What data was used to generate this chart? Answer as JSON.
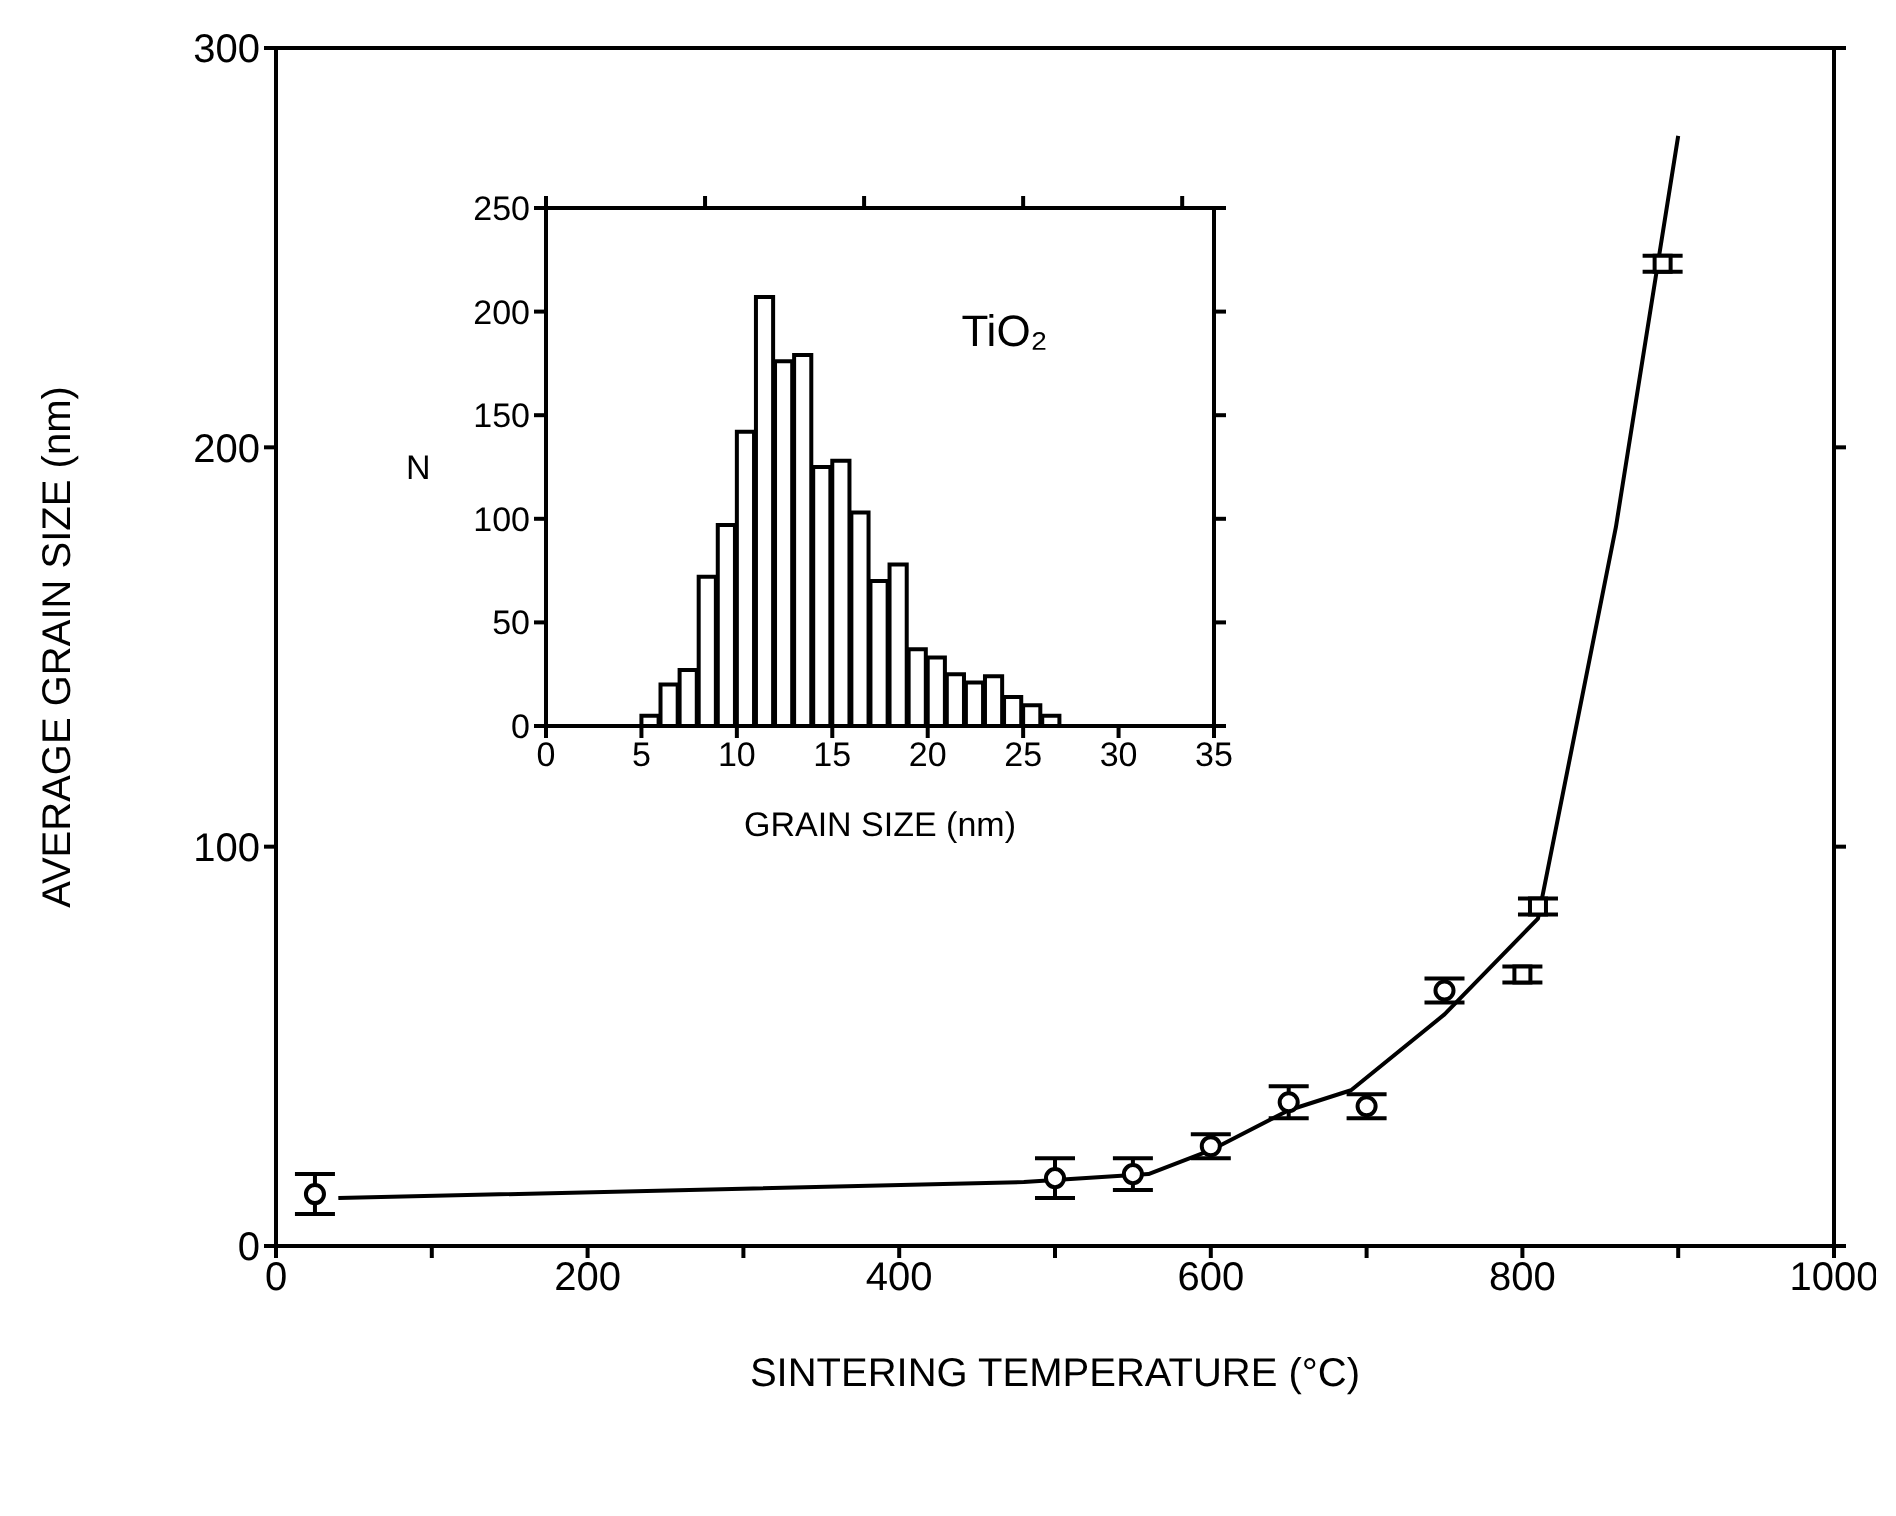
{
  "chart_data": [
    {
      "type": "scatter",
      "xlabel": "SINTERING TEMPERATURE (°C)",
      "ylabel": "AVERAGE GRAIN SIZE (nm)",
      "xlim": [
        0,
        1000
      ],
      "xticks": [
        0,
        {
          "value": 100,
          "label": null
        },
        200,
        {
          "value": 300,
          "label": null
        },
        400,
        {
          "value": 500,
          "label": null
        },
        600,
        {
          "value": 700,
          "label": null
        },
        800,
        {
          "value": 900,
          "label": null
        },
        1000
      ],
      "ylim": [
        0,
        300
      ],
      "yticks": [
        0,
        100,
        200,
        300
      ],
      "series": [
        {
          "marker": "circle",
          "color": "#000000",
          "x": [
            25,
            500,
            550,
            600,
            650,
            700,
            750
          ],
          "values": [
            13,
            17,
            18,
            25,
            36,
            35,
            64
          ],
          "errors": [
            5,
            5,
            4,
            3,
            4,
            3,
            3
          ]
        },
        {
          "marker": "square",
          "color": "#000000",
          "x": [
            800,
            810,
            890
          ],
          "values": [
            68,
            85,
            246
          ],
          "errors": [
            2,
            2,
            2
          ]
        },
        {
          "type": "line",
          "marker": "none",
          "line_style": "solid",
          "color": "#000000",
          "x": [
            40,
            480,
            560,
            600,
            650,
            690,
            750,
            810,
            860,
            900
          ],
          "values": [
            12,
            16,
            18,
            24,
            34,
            39,
            58,
            82,
            180,
            278
          ]
        }
      ]
    },
    {
      "type": "histogram",
      "xlabel": "GRAIN SIZE (nm)",
      "ylabel": "N",
      "annotations": [
        "TiO₂"
      ],
      "color": "#000000",
      "xlim": [
        0,
        35
      ],
      "xticks": [
        0,
        5,
        10,
        15,
        20,
        25,
        30,
        35
      ],
      "ylim": [
        0,
        250
      ],
      "yticks": [
        0,
        50,
        100,
        150,
        200,
        250
      ],
      "bins": [
        5,
        6,
        7,
        8,
        9,
        10,
        11,
        12,
        13,
        14,
        15,
        16,
        17,
        18,
        19,
        20,
        21,
        22,
        23,
        24,
        25,
        26,
        27
      ],
      "values": [
        5,
        20,
        27,
        72,
        97,
        142,
        207,
        176,
        179,
        125,
        128,
        103,
        70,
        78,
        37,
        33,
        25,
        21,
        24,
        14,
        10,
        5
      ]
    }
  ]
}
